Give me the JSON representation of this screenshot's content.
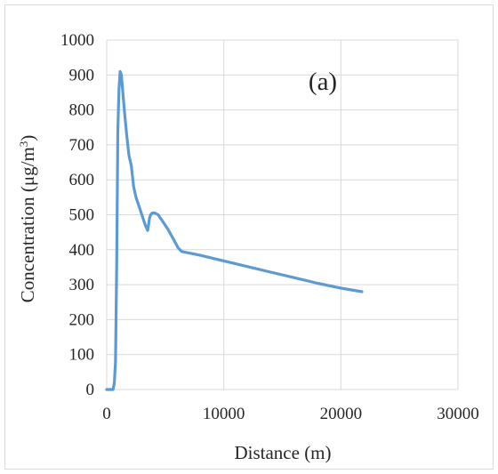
{
  "chart_data": {
    "type": "line",
    "panel_label": "(a)",
    "xlabel": "Distance (m)",
    "ylabel_base": "Concentration (μg/m",
    "ylabel_sup": "3",
    "ylabel_end": ")",
    "xlim": [
      0,
      30000
    ],
    "ylim": [
      0,
      1000
    ],
    "xticks": [
      0,
      10000,
      20000,
      30000
    ],
    "yticks": [
      0,
      100,
      200,
      300,
      400,
      500,
      600,
      700,
      800,
      900,
      1000
    ],
    "grid": true,
    "line_color": "#5b9bd5",
    "series": [
      {
        "x": [
          0,
          300,
          550,
          650,
          750,
          850,
          950,
          1050,
          1150,
          1250,
          1350,
          1500,
          1700,
          1900,
          2100,
          2300,
          2500,
          2800,
          3100,
          3300,
          3500,
          3650,
          3750,
          3900,
          4100,
          4400,
          4800,
          5200,
          5700,
          6100,
          6400,
          8000,
          10000,
          12000,
          14000,
          16000,
          18000,
          20000,
          21800
        ],
        "y": [
          0,
          0,
          0,
          20,
          80,
          350,
          740,
          860,
          910,
          900,
          860,
          800,
          730,
          670,
          640,
          580,
          550,
          520,
          490,
          470,
          455,
          490,
          500,
          505,
          505,
          500,
          480,
          460,
          430,
          405,
          395,
          384,
          368,
          352,
          336,
          320,
          304,
          290,
          280
        ]
      }
    ]
  }
}
